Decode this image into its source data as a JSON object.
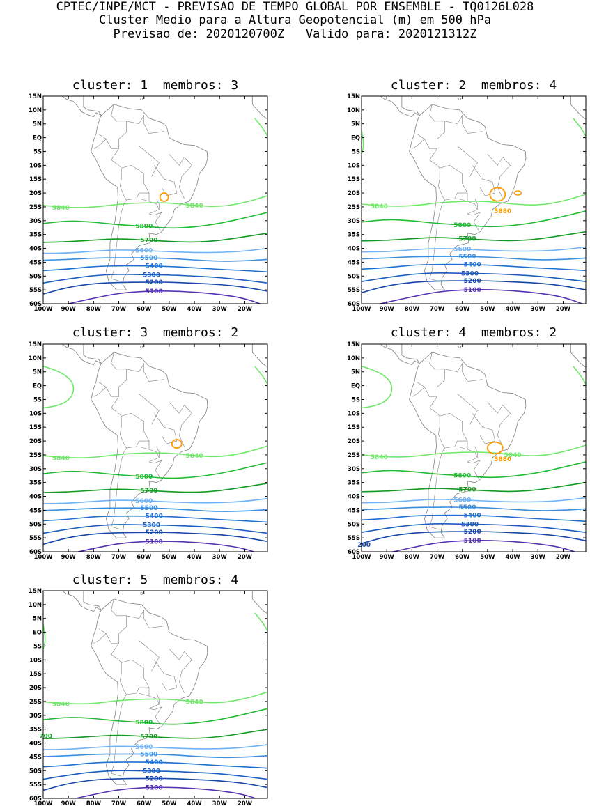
{
  "header": {
    "line1": "CPTEC/INPE/MCT - PREVISAO DE TEMPO GLOBAL POR ENSEMBLE - TQ0126L028",
    "line2": "Cluster Medio para a Altura Geopotencial (m) em 500 hPa",
    "line3": "Previsao de: 2020120700Z   Valido para: 2020121312Z"
  },
  "axes": {
    "lat_labels": [
      "15N",
      "10N",
      "5N",
      "EQ",
      "5S",
      "10S",
      "15S",
      "20S",
      "25S",
      "30S",
      "35S",
      "40S",
      "45S",
      "50S",
      "55S",
      "60S"
    ],
    "lon_labels": [
      "100W",
      "90W",
      "80W",
      "70W",
      "60W",
      "50W",
      "40W",
      "30W",
      "20W"
    ]
  },
  "contour_colors": {
    "5880": "#ff9a00",
    "5840": "#6fe86a",
    "5800": "#22bb33",
    "5700": "#139a21",
    "5600": "#6fb2f5",
    "5500": "#3a8ee0",
    "5400": "#1f6fd0",
    "5300": "#1a5cbf",
    "5200": "#1546a8",
    "5100": "#5533b0"
  },
  "panels": [
    {
      "title": "cluster: 1  membros: 3",
      "labels": [
        "5840",
        "5840",
        "5800",
        "5700",
        "5600",
        "5500",
        "5400",
        "5300",
        "5200",
        "5100"
      ]
    },
    {
      "title": "cluster: 2  membros: 4",
      "labels": [
        "5880",
        "5840",
        "5800",
        "5700",
        "5600",
        "5500",
        "5400",
        "5300",
        "5200",
        "5100"
      ]
    },
    {
      "title": "cluster: 3  membros: 2",
      "labels": [
        "5840",
        "5840",
        "5800",
        "5700",
        "5600",
        "5500",
        "5400",
        "5300",
        "5200",
        "5100"
      ]
    },
    {
      "title": "cluster: 4  membros: 2",
      "labels": [
        "5880",
        "5840",
        "5840",
        "5800",
        "5700",
        "5600",
        "5500",
        "5400",
        "5300",
        "5200",
        "5100",
        "200"
      ]
    },
    {
      "title": "cluster: 5  membros: 4",
      "labels": [
        "5840",
        "5840",
        "5800",
        "700",
        "5700",
        "5600",
        "5500",
        "5400",
        "5300",
        "5200",
        "5100"
      ]
    }
  ]
}
